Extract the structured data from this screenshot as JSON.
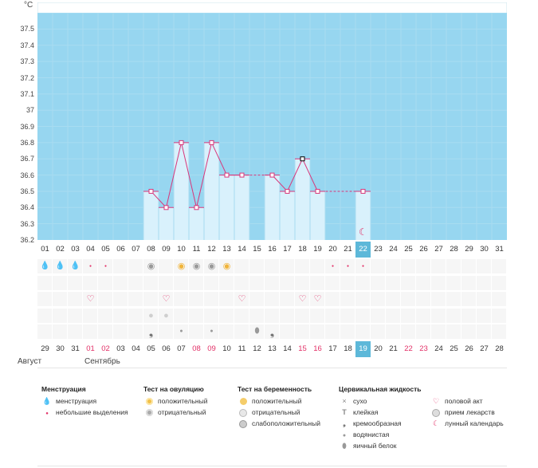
{
  "chart": {
    "unit": "°C",
    "y_ticks": [
      "37.5",
      "37.4",
      "37.3",
      "37.2",
      "37.1",
      "37",
      "36.9",
      "36.8",
      "36.7",
      "36.6",
      "36.5",
      "36.4",
      "36.3",
      "36.2"
    ]
  },
  "chart_data": {
    "type": "line",
    "ylabel": "°C",
    "ylim": [
      36.2,
      37.6
    ],
    "x": [
      "01",
      "02",
      "03",
      "04",
      "05",
      "06",
      "07",
      "08",
      "09",
      "10",
      "11",
      "12",
      "13",
      "14",
      "15",
      "16",
      "17",
      "18",
      "19",
      "20",
      "21",
      "22",
      "23",
      "24",
      "25",
      "26",
      "27",
      "28",
      "29",
      "30",
      "31"
    ],
    "series": [
      {
        "values": [
          null,
          null,
          null,
          null,
          null,
          null,
          null,
          36.5,
          36.4,
          36.8,
          36.4,
          36.8,
          36.6,
          36.6,
          null,
          36.6,
          36.5,
          36.7,
          36.5,
          null,
          null,
          36.5,
          null,
          null,
          null,
          null,
          null,
          null,
          null,
          null,
          null
        ]
      }
    ]
  },
  "cycle_days": [
    "01",
    "02",
    "03",
    "04",
    "05",
    "06",
    "07",
    "08",
    "09",
    "10",
    "11",
    "12",
    "13",
    "14",
    "15",
    "16",
    "17",
    "18",
    "19",
    "20",
    "21",
    "22",
    "23",
    "24",
    "25",
    "26",
    "27",
    "28",
    "29",
    "30",
    "31"
  ],
  "cycle_selected": "22",
  "dates": [
    {
      "d": "29",
      "red": false
    },
    {
      "d": "30",
      "red": false
    },
    {
      "d": "31",
      "red": false
    },
    {
      "d": "01",
      "red": true
    },
    {
      "d": "02",
      "red": true
    },
    {
      "d": "03",
      "red": false
    },
    {
      "d": "04",
      "red": false
    },
    {
      "d": "05",
      "red": false
    },
    {
      "d": "06",
      "red": false
    },
    {
      "d": "07",
      "red": false
    },
    {
      "d": "08",
      "red": true
    },
    {
      "d": "09",
      "red": true
    },
    {
      "d": "10",
      "red": false
    },
    {
      "d": "11",
      "red": false
    },
    {
      "d": "12",
      "red": false
    },
    {
      "d": "13",
      "red": false
    },
    {
      "d": "14",
      "red": false
    },
    {
      "d": "15",
      "red": true
    },
    {
      "d": "16",
      "red": true
    },
    {
      "d": "17",
      "red": false
    },
    {
      "d": "18",
      "red": false
    },
    {
      "d": "19",
      "red": false
    },
    {
      "d": "20",
      "red": false
    },
    {
      "d": "21",
      "red": false
    },
    {
      "d": "22",
      "red": true
    },
    {
      "d": "23",
      "red": true
    },
    {
      "d": "24",
      "red": false
    },
    {
      "d": "25",
      "red": false
    },
    {
      "d": "26",
      "red": false
    },
    {
      "d": "27",
      "red": false
    },
    {
      "d": "28",
      "red": false
    }
  ],
  "date_selected": "19",
  "months": {
    "august": "Август",
    "september": "Сентябрь"
  },
  "legend": {
    "menstruation": {
      "title": "Менструация",
      "items": [
        "менструация",
        "небольшие выделения"
      ]
    },
    "ovulation": {
      "title": "Тест на овуляцию",
      "items": [
        "положительный",
        "отрицательный"
      ]
    },
    "pregnancy": {
      "title": "Тест на беременность",
      "items": [
        "положительный",
        "отрицательный",
        "слабоположительный"
      ]
    },
    "cervical": {
      "title": "Цервикальная жидкость",
      "items": [
        "сухо",
        "клейкая",
        "кремообразная",
        "водянистая",
        "яичный белок"
      ]
    },
    "other": {
      "items": [
        "половой акт",
        "прием лекарств",
        "лунный календарь"
      ]
    }
  },
  "colors": {
    "sky": "#97d6f0",
    "bar": "#d9f1fc",
    "line": "#d9367a",
    "accent": "#e23067",
    "select": "#5db8d9"
  }
}
